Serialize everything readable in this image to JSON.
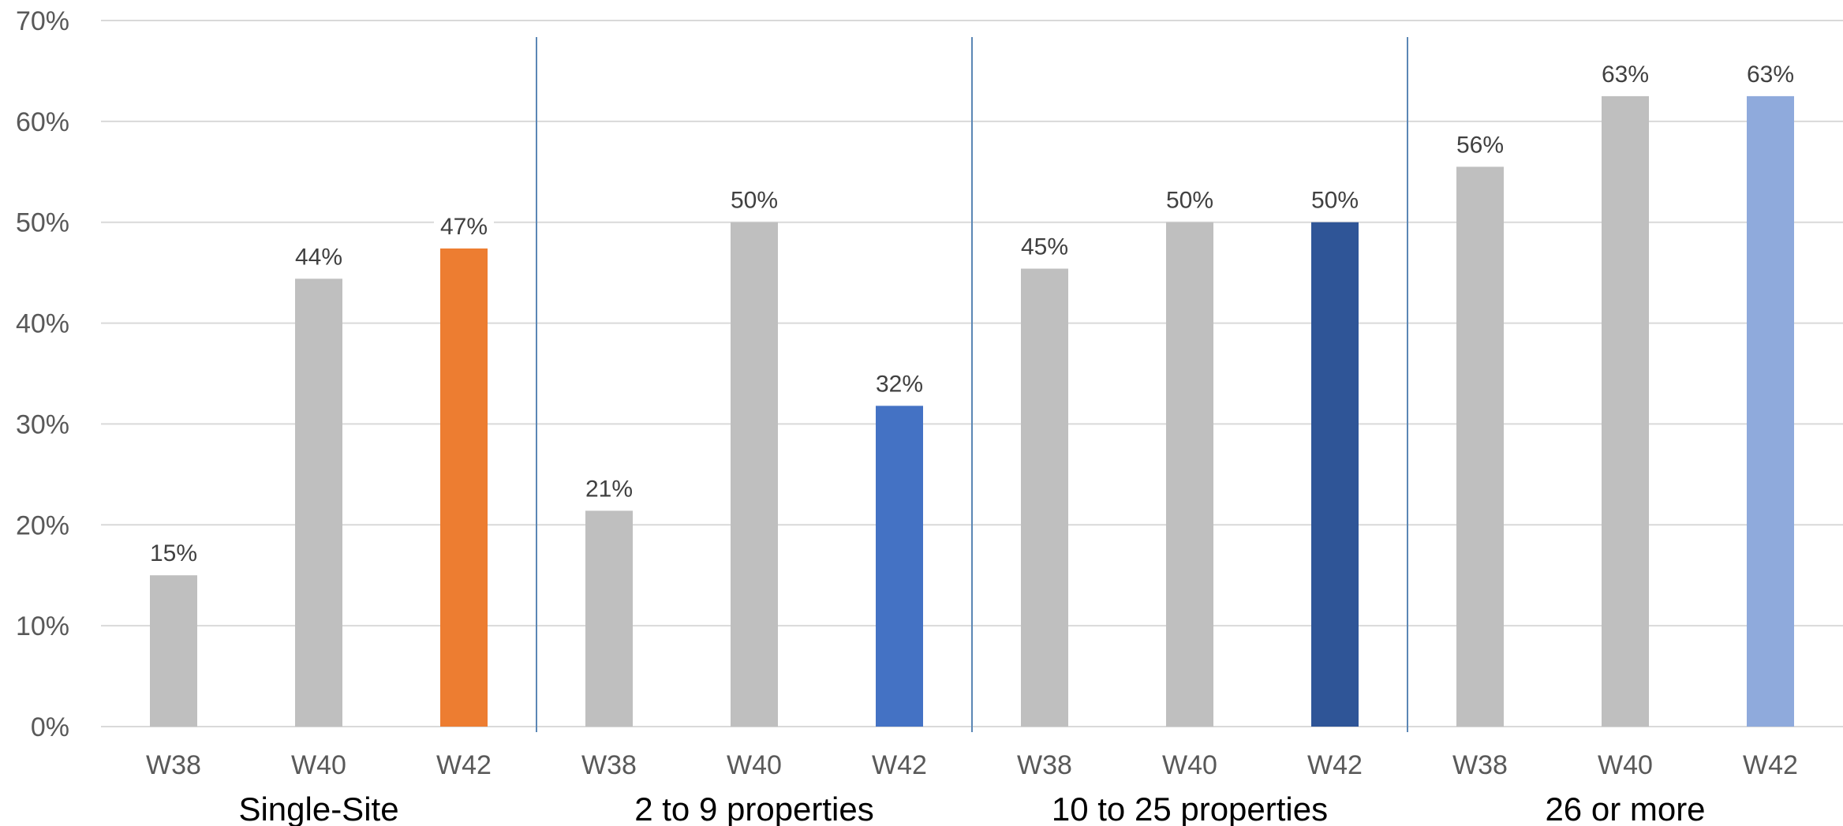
{
  "chart_data": {
    "type": "bar",
    "title": "",
    "xlabel": "",
    "ylabel": "",
    "ylim": [
      0,
      70
    ],
    "y_ticks": [
      "0%",
      "10%",
      "20%",
      "30%",
      "40%",
      "50%",
      "60%",
      "70%"
    ],
    "y_tick_values": [
      0,
      10,
      20,
      30,
      40,
      50,
      60,
      70
    ],
    "grid": true,
    "legend": "none",
    "groups": [
      {
        "name": "Single-Site",
        "bars": [
          {
            "category": "W38",
            "value": 15,
            "label": "15%",
            "color": "#bfbfbf"
          },
          {
            "category": "W40",
            "value": 44.4,
            "label": "44%",
            "color": "#bfbfbf"
          },
          {
            "category": "W42",
            "value": 47.4,
            "label": "47%",
            "color": "#ed7d31"
          }
        ]
      },
      {
        "name": "2 to 9 properties",
        "bars": [
          {
            "category": "W38",
            "value": 21.4,
            "label": "21%",
            "color": "#bfbfbf"
          },
          {
            "category": "W40",
            "value": 50,
            "label": "50%",
            "color": "#bfbfbf"
          },
          {
            "category": "W42",
            "value": 31.8,
            "label": "32%",
            "color": "#4472c4"
          }
        ]
      },
      {
        "name": "10 to 25 properties",
        "bars": [
          {
            "category": "W38",
            "value": 45.4,
            "label": "45%",
            "color": "#bfbfbf"
          },
          {
            "category": "W40",
            "value": 50,
            "label": "50%",
            "color": "#bfbfbf"
          },
          {
            "category": "W42",
            "value": 50,
            "label": "50%",
            "color": "#2f5597"
          }
        ]
      },
      {
        "name": "26 or more",
        "bars": [
          {
            "category": "W38",
            "value": 55.5,
            "label": "56%",
            "color": "#bfbfbf"
          },
          {
            "category": "W40",
            "value": 62.5,
            "label": "63%",
            "color": "#bfbfbf"
          },
          {
            "category": "W42",
            "value": 62.5,
            "label": "63%",
            "color": "#8faadc"
          }
        ]
      }
    ],
    "colors": {
      "gridline": "#d9d9d9",
      "separator": "#5b87b5",
      "axis": "#d9d9d9"
    }
  }
}
